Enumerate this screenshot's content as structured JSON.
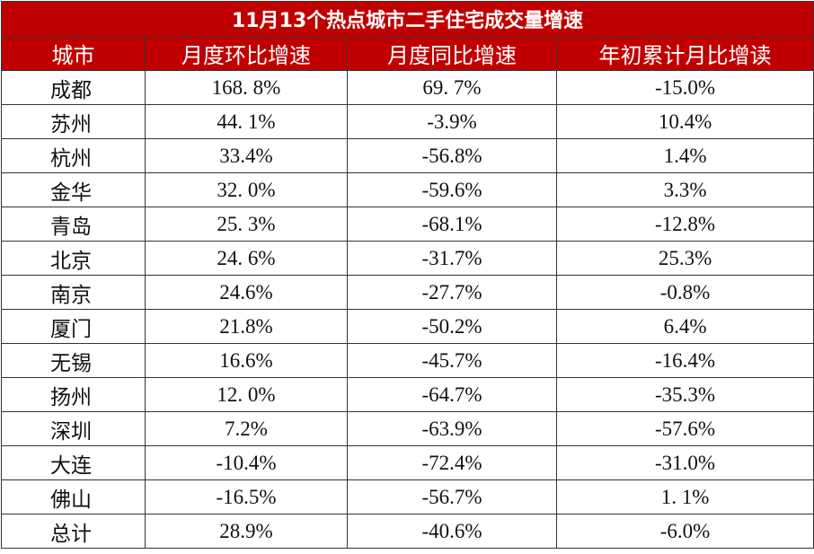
{
  "table": {
    "title": "11月13个热点城市二手住宅成交量增速",
    "header": [
      "城市",
      "月度环比增速",
      "月度同比增速",
      "年初累计月比增读"
    ],
    "rows": [
      [
        "成都",
        "168. 8%",
        "69. 7%",
        "-15.0%"
      ],
      [
        "苏州",
        "44. 1%",
        "-3.9%",
        "10.4%"
      ],
      [
        "杭州",
        "33.4%",
        "-56.8%",
        "1.4%"
      ],
      [
        "金华",
        "32. 0%",
        "-59.6%",
        "3.3%"
      ],
      [
        "青岛",
        "25. 3%",
        "-68.1%",
        "-12.8%"
      ],
      [
        "北京",
        "24. 6%",
        "-31.7%",
        "25.3%"
      ],
      [
        "南京",
        "24.6%",
        "-27.7%",
        "-0.8%"
      ],
      [
        "厦门",
        "21.8%",
        "-50.2%",
        "6.4%"
      ],
      [
        "无锡",
        "16.6%",
        "-45.7%",
        "-16.4%"
      ],
      [
        "扬州",
        "12. 0%",
        "-64.7%",
        "-35.3%"
      ],
      [
        "深圳",
        "7.2%",
        "-63.9%",
        "-57.6%"
      ],
      [
        "大连",
        "-10.4%",
        "-72.4%",
        "-31.0%"
      ],
      [
        "佛山",
        "-16.5%",
        "-56.7%",
        "1. 1%"
      ],
      [
        "总计",
        "28.9%",
        "-40.6%",
        "-6.0%"
      ]
    ]
  }
}
